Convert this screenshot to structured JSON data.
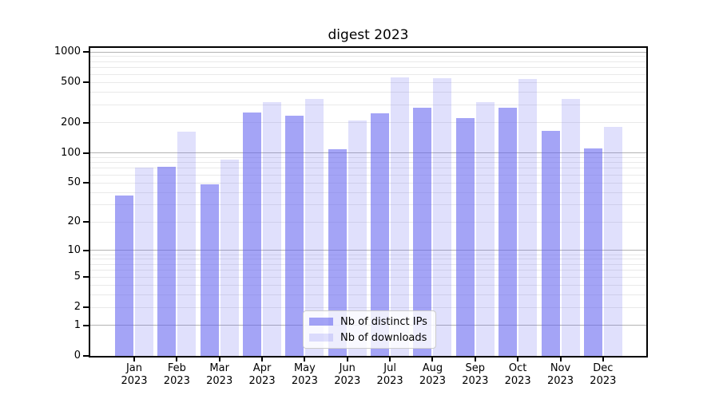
{
  "figure": {
    "title": "digest 2023"
  },
  "legend": {
    "items": [
      {
        "label": "Nb of distinct IPs",
        "series_key": "distinct_ips"
      },
      {
        "label": "Nb of downloads",
        "series_key": "downloads"
      }
    ]
  },
  "chart_data": {
    "type": "bar",
    "title": "digest 2023",
    "categories": [
      "Jan",
      "Feb",
      "Mar",
      "Apr",
      "May",
      "Jun",
      "Jul",
      "Aug",
      "Sep",
      "Oct",
      "Nov",
      "Dec"
    ],
    "category_year": "2023",
    "series": [
      {
        "name": "Nb of distinct IPs",
        "values": [
          37,
          73,
          48,
          252,
          233,
          109,
          245,
          280,
          220,
          283,
          164,
          111
        ]
      },
      {
        "name": "Nb of downloads",
        "values": [
          71,
          163,
          86,
          316,
          340,
          209,
          561,
          546,
          316,
          538,
          342,
          181
        ]
      }
    ],
    "yscale": "log(1+x)",
    "ylim": [
      0,
      1100
    ],
    "ytick_values": [
      1000,
      500,
      200,
      100,
      50,
      20,
      10,
      5,
      2,
      1,
      0
    ],
    "ytick_labels": [
      "1000",
      "500",
      "200",
      "100",
      "50",
      "20",
      "10",
      "5",
      "2",
      "1",
      "0"
    ],
    "minor_grid_values": [
      2,
      3,
      4,
      5,
      6,
      7,
      8,
      9,
      20,
      30,
      40,
      50,
      60,
      70,
      80,
      90,
      200,
      300,
      400,
      500,
      600,
      700,
      800,
      900
    ],
    "major_grid_values": [
      1,
      10,
      100,
      1000
    ],
    "grid": true,
    "legend_position": "lower center",
    "colors": {
      "bar_base": "#6363ef",
      "series_alpha": [
        0.58,
        0.2
      ],
      "bar_solid_hex": [
        "#a5a5f6",
        "#e0e0fc"
      ],
      "major_grid": "#b3b3b3",
      "minor_grid": "#e9e9e9",
      "axis": "#000000",
      "legend_border": "#cccccc"
    }
  }
}
